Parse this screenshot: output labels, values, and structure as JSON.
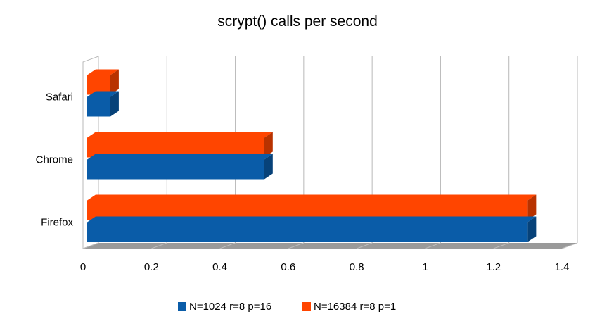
{
  "chart_data": {
    "type": "bar",
    "orientation": "horizontal",
    "style": "3d",
    "title": "scrypt() calls per second",
    "xlabel": "",
    "ylabel": "",
    "categories": [
      "Safari",
      "Chrome",
      "Firefox"
    ],
    "series": [
      {
        "name": "N=1024 r=8 p=16",
        "color": "#0a5ca8",
        "values": [
          0.08,
          0.53,
          1.3
        ]
      },
      {
        "name": "N=16384 r=8 p=1",
        "color": "#ff4500",
        "values": [
          0.08,
          0.53,
          1.3
        ]
      }
    ],
    "xlim": [
      0,
      1.4
    ],
    "xticks": [
      "0",
      "0.2",
      "0.4",
      "0.6",
      "0.8",
      "1",
      "1.2",
      "1.4"
    ],
    "grid": true,
    "legend_position": "bottom"
  }
}
